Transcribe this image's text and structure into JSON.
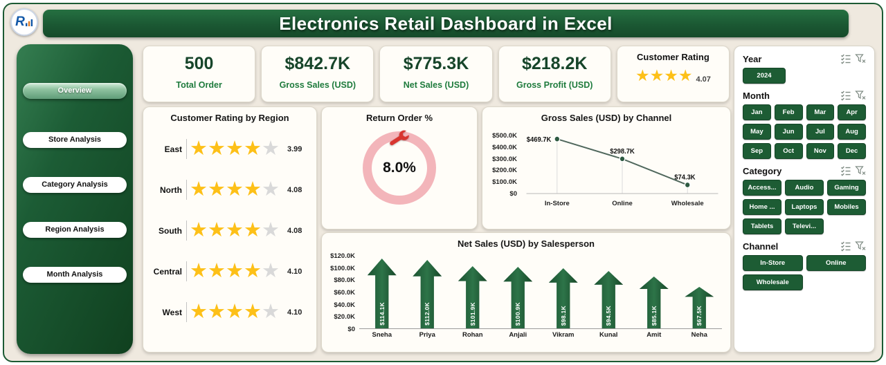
{
  "header": {
    "title": "Electronics Retail Dashboard in Excel",
    "logo_letter": "R"
  },
  "sidebar": {
    "items": [
      {
        "label": "Overview",
        "active": true
      },
      {
        "label": "Store Analysis",
        "active": false
      },
      {
        "label": "Category Analysis",
        "active": false
      },
      {
        "label": "Region Analysis",
        "active": false
      },
      {
        "label": "Month Analysis",
        "active": false
      }
    ]
  },
  "kpis": [
    {
      "value": "500",
      "label": "Total Order"
    },
    {
      "value": "$842.7K",
      "label": "Gross Sales (USD)"
    },
    {
      "value": "$775.3K",
      "label": "Net Sales (USD)"
    },
    {
      "value": "$218.2K",
      "label": "Gross Profit (USD)"
    }
  ],
  "customer_rating": {
    "title": "Customer Rating",
    "stars": 4,
    "value": "4.07"
  },
  "chart_data": [
    {
      "type": "bar",
      "title": "Customer Rating by Region",
      "categories": [
        "East",
        "North",
        "South",
        "Central",
        "West"
      ],
      "values": [
        3.99,
        4.08,
        4.08,
        4.1,
        4.1
      ],
      "labels": [
        "3.99",
        "4.08",
        "4.08",
        "4.10",
        "4.10"
      ],
      "display": "star-rating",
      "stars_full": 4,
      "ylim": [
        0,
        5
      ]
    },
    {
      "type": "pie",
      "title": "Return Order %",
      "value": "8.0%",
      "percent": 8.0
    },
    {
      "type": "line",
      "title": "Gross Sales (USD) by Channel",
      "categories": [
        "In-Store",
        "Online",
        "Wholesale"
      ],
      "values": [
        469.7,
        298.7,
        74.3
      ],
      "labels": [
        "$469.7K",
        "$298.7K",
        "$74.3K"
      ],
      "yticks": [
        "$500.0K",
        "$400.0K",
        "$300.0K",
        "$200.0K",
        "$100.0K",
        "$0"
      ],
      "ylim": [
        0,
        500
      ]
    },
    {
      "type": "bar",
      "title": "Net Sales (USD) by Salesperson",
      "categories": [
        "Sneha",
        "Priya",
        "Rohan",
        "Anjali",
        "Vikram",
        "Kunal",
        "Amit",
        "Neha"
      ],
      "values": [
        114.1,
        112.0,
        101.9,
        100.9,
        98.1,
        94.5,
        85.1,
        67.5
      ],
      "labels": [
        "$114.1K",
        "$112.0K",
        "$101.9K",
        "$100.9K",
        "$98.1K",
        "$94.5K",
        "$85.1K",
        "$67.5K"
      ],
      "yticks": [
        "$120.0K",
        "$100.0K",
        "$80.0K",
        "$60.0K",
        "$40.0K",
        "$20.0K",
        "$0"
      ],
      "ylim": [
        0,
        120
      ]
    }
  ],
  "slicers": {
    "year": {
      "label": "Year",
      "options": [
        "2024"
      ]
    },
    "month": {
      "label": "Month",
      "options": [
        "Jan",
        "Feb",
        "Mar",
        "Apr",
        "May",
        "Jun",
        "Jul",
        "Aug",
        "Sep",
        "Oct",
        "Nov",
        "Dec"
      ]
    },
    "category": {
      "label": "Category",
      "options": [
        "Access...",
        "Audio",
        "Gaming",
        "Home ...",
        "Laptops",
        "Mobiles",
        "Tablets",
        "Televi..."
      ]
    },
    "channel": {
      "label": "Channel",
      "options": [
        "In-Store",
        "Online",
        "Wholesale"
      ]
    }
  },
  "colors": {
    "brand_green": "#1d5c34",
    "star_gold": "#fdc018",
    "ring_pink": "#f3b5ba",
    "background": "#efe9df"
  }
}
